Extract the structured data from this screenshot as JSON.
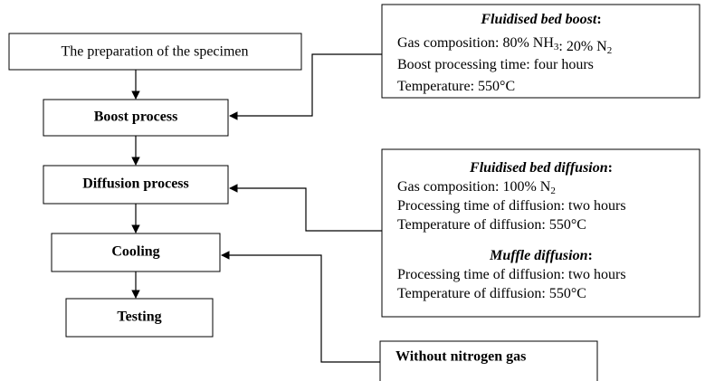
{
  "nodes": [
    {
      "label": "The preparation of the specimen"
    },
    {
      "label": "Boost process"
    },
    {
      "label": "Diffusion process"
    },
    {
      "label": "Cooling"
    },
    {
      "label": "Testing"
    }
  ],
  "notes": [
    {
      "title": "Fluidised bed boost",
      "colon": ":",
      "lines": [
        [
          {
            "t": "Gas composition: 80% NH"
          },
          {
            "sub": "3"
          },
          {
            "t": ": 20% N"
          },
          {
            "sub": "2"
          }
        ],
        [
          {
            "t": "Boost processing time: four hours"
          }
        ],
        [
          {
            "t": "Temperature: 550°C"
          }
        ]
      ]
    },
    {
      "title": "Fluidised bed diffusion",
      "colon": ":",
      "lines": [
        [
          {
            "t": "Gas composition: 100% N"
          },
          {
            "sub": "2"
          }
        ],
        [
          {
            "t": "Processing time of diffusion: two hours"
          }
        ],
        [
          {
            "t": "Temperature of diffusion: 550°C"
          }
        ]
      ]
    },
    {
      "title": "Muffle diffusion",
      "colon": ":",
      "lines": [
        [
          {
            "t": "Processing time of diffusion: two hours"
          }
        ],
        [
          {
            "t": "Temperature of diffusion: 550°C"
          }
        ]
      ]
    }
  ],
  "side": {
    "label": "Without nitrogen gas"
  }
}
